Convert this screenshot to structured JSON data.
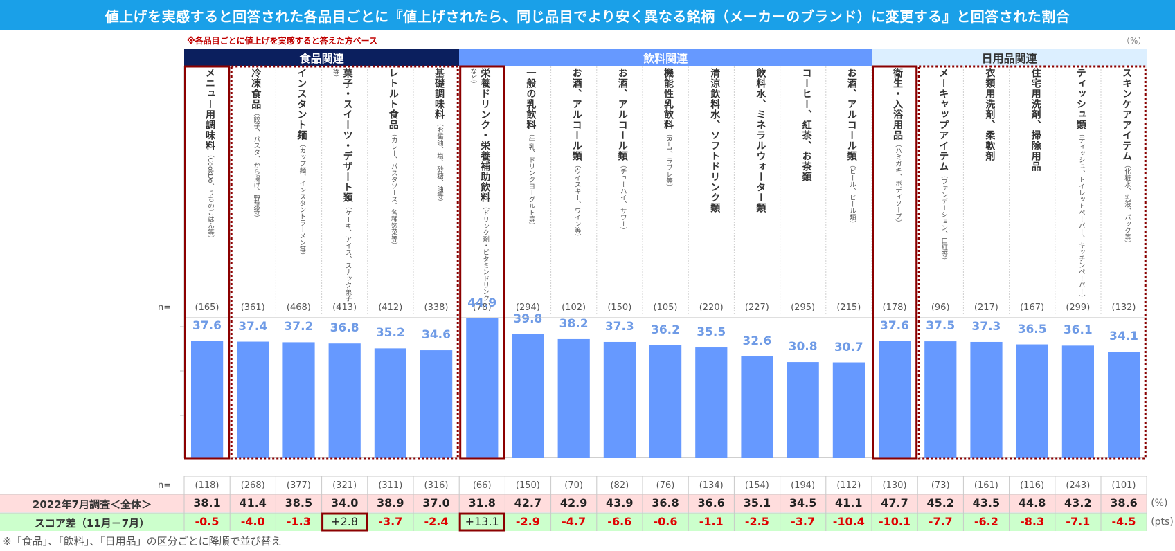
{
  "title": "値上げを実感すると回答された各品目ごとに『値上げされたら、同じ品目でより安く異なる銘柄（メーカーのブランド）に変更する』と回答された割合",
  "note_top": "※各品目ごとに値上げを実感すると答えた方ベース",
  "unit_pct_top": "（%）",
  "n_prefix": "n=",
  "colors": {
    "title_bg": "#1aa0e8",
    "food_hdr": "#0b1f5e",
    "drink_hdr": "#6699ff",
    "daily_hdr": "#dcefff",
    "bar": "#6699ff",
    "highlight": "#8b0000",
    "row_july_bg": "#ffdddd",
    "row_diff_bg": "#ccffcc",
    "neg": "#e00000"
  },
  "categories": [
    {
      "name": "食品関連",
      "span": [
        0,
        5
      ]
    },
    {
      "name": "飲料関連",
      "span": [
        6,
        14
      ]
    },
    {
      "name": "日用品関連",
      "span": [
        15,
        20
      ]
    }
  ],
  "items": [
    {
      "name": "メニュー用調味料",
      "sub": "（CookDo、うちのごはん等）"
    },
    {
      "name": "冷凍食品",
      "sub": "（餃子、パスタ、から揚げ、野菜等）"
    },
    {
      "name": "インスタント麺",
      "sub": "（カップ麺、インスタントラーメン等）"
    },
    {
      "name": "菓子・スイーツ・デザート類",
      "sub": "（ケーキ、アイス、スナック菓子等）"
    },
    {
      "name": "レトルト食品",
      "sub": "（カレー、パスタソース、各種惣菜等）"
    },
    {
      "name": "基礎調味料",
      "sub": "（お醤油、塩、砂糖、油等）"
    },
    {
      "name": "栄養ドリンク・栄養補助飲料",
      "sub": "（ドリンク剤・ビタミンドリンクなど）"
    },
    {
      "name": "一般の乳飲料",
      "sub": "（牛乳、ドリンクヨーグルト等）"
    },
    {
      "name": "お酒、アルコール類",
      "sub": "（ウイスキー、ワイン等）"
    },
    {
      "name": "お酒、アルコール類",
      "sub": "（チューハイ、サワー）"
    },
    {
      "name": "機能性乳飲料",
      "sub": "（R−1、ラブレ等）"
    },
    {
      "name": "清涼飲料水、ソフトドリンク類",
      "sub": ""
    },
    {
      "name": "飲料水、ミネラルウォーター類",
      "sub": ""
    },
    {
      "name": "コーヒー、紅茶、お茶類",
      "sub": ""
    },
    {
      "name": "お酒、アルコール類",
      "sub": "（ビール、ビール類）"
    },
    {
      "name": "衛生・入浴用品",
      "sub": "（ハミガキ、ボディソープ）"
    },
    {
      "name": "メーキャップアイテム",
      "sub": "（ファンデーション、口紅等）"
    },
    {
      "name": "衣類用洗剤、柔軟剤",
      "sub": ""
    },
    {
      "name": "住宅用洗剤、掃除用品",
      "sub": ""
    },
    {
      "name": "ティッシュ類",
      "sub": "（ティッシュ、トイレットペーパー、キッチンペーパー）"
    },
    {
      "name": "スキンケアアイテム",
      "sub": "（化粧水、乳液、パック等）"
    }
  ],
  "chart_data": {
    "type": "bar",
    "title": "値上げを実感すると回答された各品目ごとに『値上げされたら、同じ品目でより安く異なる銘柄（メーカーのブランド）に変更する』と回答された割合",
    "categories": [
      "メニュー用調味料",
      "冷凍食品",
      "インスタント麺",
      "菓子・スイーツ・デザート類",
      "レトルト食品",
      "基礎調味料",
      "栄養ドリンク・栄養補助飲料",
      "一般の乳飲料",
      "お酒、アルコール類（ウイスキー、ワイン等）",
      "お酒、アルコール類（チューハイ、サワー）",
      "機能性乳飲料",
      "清涼飲料水、ソフトドリンク類",
      "飲料水、ミネラルウォーター類",
      "コーヒー、紅茶、お茶類",
      "お酒、アルコール類（ビール、ビール類）",
      "衛生・入浴用品",
      "メーキャップアイテム",
      "衣類用洗剤、柔軟剤",
      "住宅用洗剤、掃除用品",
      "ティッシュ類",
      "スキンケアアイテム"
    ],
    "values": [
      37.6,
      37.4,
      37.2,
      36.8,
      35.2,
      34.6,
      44.9,
      39.8,
      38.2,
      37.3,
      36.2,
      35.5,
      32.6,
      30.8,
      30.7,
      37.6,
      37.5,
      37.3,
      36.5,
      36.1,
      34.1
    ],
    "n": [
      "(165)",
      "(361)",
      "(468)",
      "(413)",
      "(412)",
      "(338)",
      "(78)",
      "(294)",
      "(102)",
      "(150)",
      "(105)",
      "(220)",
      "(227)",
      "(295)",
      "(215)",
      "(178)",
      "(96)",
      "(217)",
      "(167)",
      "(299)",
      "(132)"
    ],
    "ylim": [
      0,
      60
    ],
    "xlabel": "",
    "ylabel": "",
    "unit": "（%）",
    "highlighted_items": [
      0,
      6,
      15
    ],
    "dotted_groups": [
      [
        1,
        5
      ],
      [
        16,
        20
      ]
    ]
  },
  "table": {
    "n_label": "n=",
    "n_july": [
      "(118)",
      "(268)",
      "(377)",
      "(321)",
      "(311)",
      "(316)",
      "(66)",
      "(150)",
      "(70)",
      "(82)",
      "(76)",
      "(134)",
      "(154)",
      "(194)",
      "(112)",
      "(130)",
      "(73)",
      "(161)",
      "(116)",
      "(243)",
      "(101)"
    ],
    "july_label": "2022年7月調査＜全体＞",
    "july_values": [
      "38.1",
      "41.4",
      "38.5",
      "34.0",
      "38.9",
      "37.0",
      "31.8",
      "42.7",
      "42.9",
      "43.9",
      "36.8",
      "36.6",
      "35.1",
      "34.5",
      "41.1",
      "47.7",
      "45.2",
      "43.5",
      "44.8",
      "43.2",
      "38.6"
    ],
    "july_unit": "(%)",
    "diff_label": "スコア差（11月－7月）",
    "diff_values": [
      "-0.5",
      "-4.0",
      "-1.3",
      "+2.8",
      "-3.7",
      "-2.4",
      "+13.1",
      "-2.9",
      "-4.7",
      "-6.6",
      "-0.6",
      "-1.1",
      "-2.5",
      "-3.7",
      "-10.4",
      "-10.1",
      "-7.7",
      "-6.2",
      "-8.3",
      "-7.1",
      "-4.5"
    ],
    "diff_unit": "(pts)",
    "boxed": [
      3,
      6
    ]
  },
  "footnote": "※「食品」、「飲料」、「日用品」の区分ごとに降順で並び替え"
}
